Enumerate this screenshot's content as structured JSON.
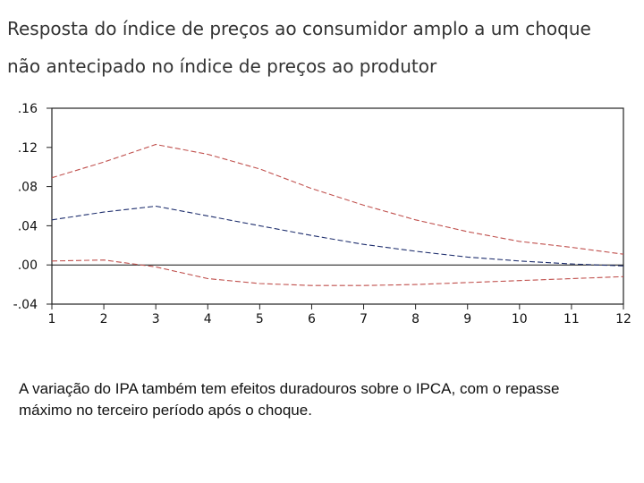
{
  "title_lines": [
    "Resposta do índice de preços ao consumidor amplo a um choque",
    "não antecipado no índice de preços ao produtor"
  ],
  "caption": "A variação do IPA também tem efeitos duradouros sobre o IPCA, com o repasse máximo no terceiro período após o choque.",
  "chart_data": {
    "type": "line",
    "x": [
      1,
      2,
      3,
      4,
      5,
      6,
      7,
      8,
      9,
      10,
      11,
      12
    ],
    "x_tick_labels": [
      "1",
      "2",
      "3",
      "4",
      "5",
      "6",
      "7",
      "8",
      "9",
      "10",
      "11",
      "12"
    ],
    "y_tick_labels": [
      ".16",
      ".12",
      ".08",
      ".04",
      ".00",
      "-.04"
    ],
    "y_ticks": [
      0.16,
      0.12,
      0.08,
      0.04,
      0.0,
      -0.04
    ],
    "ylim": [
      -0.04,
      0.16
    ],
    "xlim": [
      1,
      12
    ],
    "grid": false,
    "zero_line": true,
    "series": [
      {
        "values": [
          0.089,
          0.105,
          0.123,
          0.113,
          0.098,
          0.078,
          0.061,
          0.046,
          0.034,
          0.024,
          0.018,
          0.011
        ],
        "color": "#c0504d",
        "dash": "dashed"
      },
      {
        "values": [
          0.046,
          0.054,
          0.06,
          0.05,
          0.04,
          0.03,
          0.021,
          0.014,
          0.008,
          0.004,
          0.001,
          -0.001
        ],
        "color": "#1f2f6e",
        "dash": "dashed"
      },
      {
        "values": [
          0.004,
          0.005,
          -0.002,
          -0.014,
          -0.019,
          -0.021,
          -0.021,
          -0.02,
          -0.018,
          -0.016,
          -0.014,
          -0.012
        ],
        "color": "#c0504d",
        "dash": "dashed"
      }
    ]
  }
}
